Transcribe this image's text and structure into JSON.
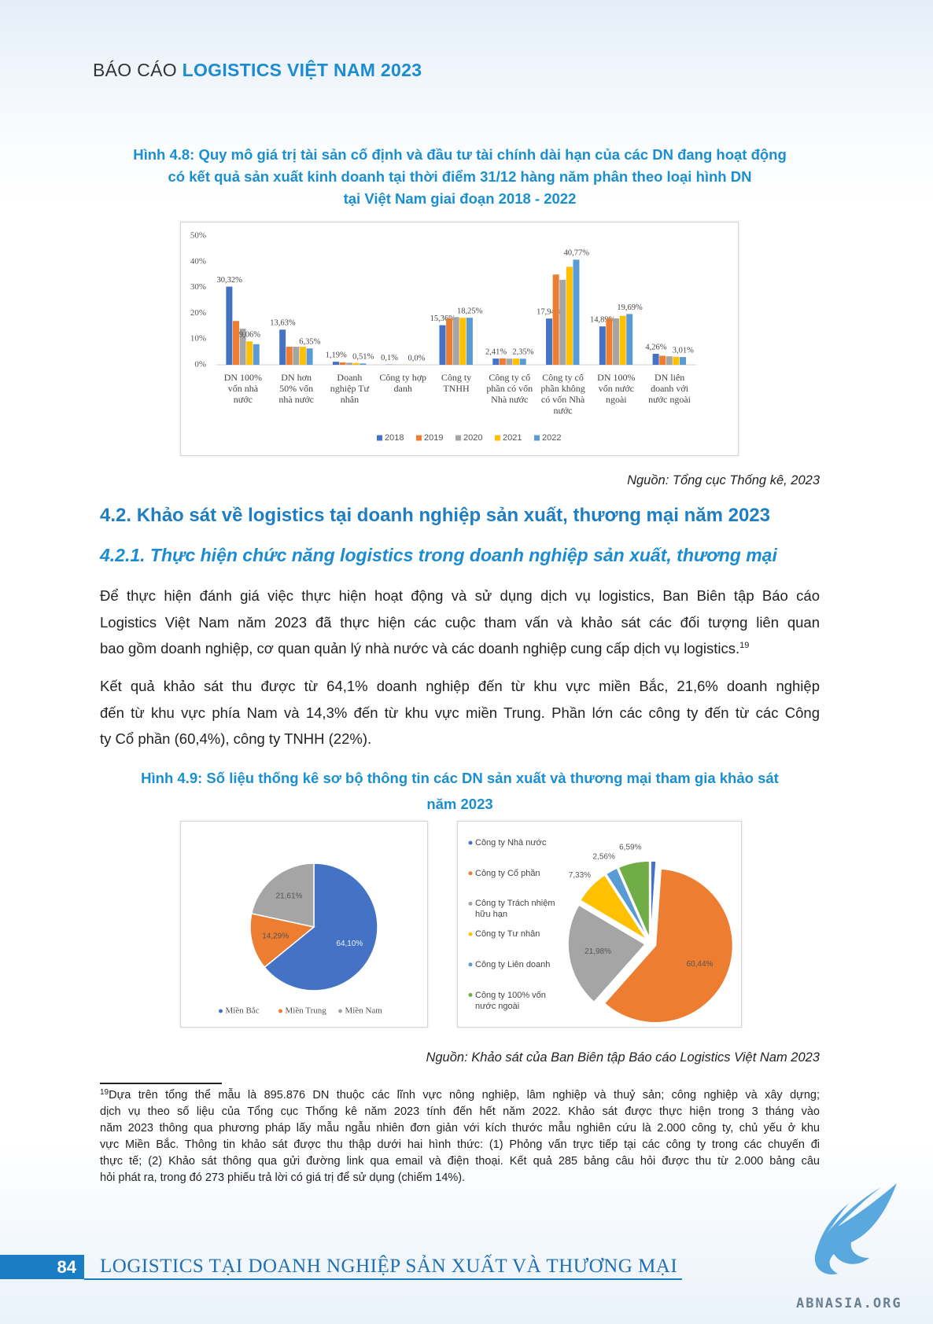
{
  "header": {
    "prefix": "BÁO CÁO",
    "title": "LOGISTICS VIỆT NAM 2023"
  },
  "figure_4_8": {
    "caption": [
      "Hình 4.8: Quy mô giá trị tài sản cố định và đầu tư tài chính dài hạn của các DN đang hoạt động",
      "có kết quả sản xuất kinh doanh tại thời điểm 31/12 hàng năm phân theo loại hình DN",
      "tại Việt Nam giai đoạn 2018 - 2022"
    ],
    "source": "Nguồn: Tổng cục Thống kê, 2023"
  },
  "section": {
    "heading": "4.2. Khảo sát về logistics tại doanh nghiệp sản xuất, thương mại năm 2023",
    "subheading": "4.2.1. Thực hiện chức năng logistics trong doanh nghiệp sản xuất, thương mại",
    "paragraphs": [
      {
        "lines": [
          "Để thực hiện đánh giá việc thực hiện hoạt động và sử dụng dịch vụ logistics, Ban Biên tập Báo cáo",
          "Logistics Việt Nam năm 2023 đã thực hiện các cuộc tham vấn và khảo sát các đối tượng liên quan",
          "bao gồm doanh nghiệp, cơ quan quản lý nhà nước và các doanh nghiệp cung cấp dịch vụ logistics."
        ],
        "note": "19"
      },
      {
        "lines": [
          "Kết quả khảo sát thu được từ 64,1% doanh nghiệp đến từ khu vực miền Bắc, 21,6% doanh nghiệp",
          "đến từ khu vực phía Nam và 14,3% đến từ khu vực miền Trung. Phần lớn các công ty đến từ các Công",
          "ty Cổ phần (60,4%), công ty TNHH (22%)."
        ]
      }
    ]
  },
  "figure_4_9": {
    "caption": [
      "Hình 4.9: Số liệu thống kê sơ bộ thông tin các DN sản xuất và thương mại tham gia khảo sát",
      "năm 2023"
    ],
    "source": "Nguồn: Khảo sát của Ban Biên tập Báo cáo Logistics Việt Nam 2023"
  },
  "footnote": {
    "marker": "19",
    "lines": [
      "Dựa trên tổng thể mẫu là 895.876 DN thuộc các lĩnh vực nông nghiệp, lâm nghiệp và thuỷ sản; công nghiệp và xây dựng;",
      "dịch vụ theo số liệu của Tổng cục Thống kê năm 2023 tính đến hết năm 2022. Khảo sát được thực hiện trong 3 tháng vào",
      "năm 2023 thông qua phương pháp lấy mẫu ngẫu nhiên đơn giản với kích thước mẫu nghiên cứu là 2.000 công ty, chủ yếu ở khu",
      "vực Miền Bắc. Thông tin khảo sát được thu thập dưới hai hình thức: (1) Phỏng vấn trực tiếp tại các công ty trong các chuyến đi",
      "thực tế; (2) Khảo sát thông qua gửi đường link qua email và điện thoại. Kết quả 285 bảng câu hỏi được thu từ 2.000 bảng câu",
      "hỏi phát ra, trong đó 273 phiếu trả lời có giá trị để sử dụng (chiếm 14%)."
    ]
  },
  "footer": {
    "page": "84",
    "title": "LOGISTICS TẠI DOANH NGHIỆP SẢN XUẤT VÀ THƯƠNG MẠI",
    "watermark": "ABNASIA.ORG"
  },
  "chart_data": [
    {
      "type": "bar",
      "categories": [
        "DN 100% vốn nhà nước",
        "DN hơn 50% vốn nhà nước",
        "Doanh nghiệp Tư nhân",
        "Công ty hợp danh",
        "Công ty TNHH",
        "Công ty cổ phần có vốn Nhà nước",
        "Công ty cổ phần không có vốn Nhà nước",
        "DN 100% vốn nước ngoài",
        "DN liên doanh với nước ngoài"
      ],
      "series": [
        {
          "name": "2018",
          "color": "#4472c4",
          "values": [
            30.32,
            13.63,
            1.19,
            0.1,
            15.36,
            2.41,
            17.94,
            14.89,
            4.26
          ],
          "value_labels": [
            "30,32%",
            "13,63%",
            "1,19%",
            "0,1%",
            "15,36%",
            "2,41%",
            "17,94%",
            "14,89%",
            "4,26%"
          ]
        },
        {
          "name": "2019",
          "color": "#ed7d31",
          "values": [
            17,
            7,
            0.9,
            0.05,
            18,
            2.5,
            35,
            18,
            3.5
          ],
          "value_labels": [
            null,
            null,
            null,
            null,
            null,
            null,
            null,
            null,
            null
          ]
        },
        {
          "name": "2020",
          "color": "#a5a5a5",
          "values": [
            14,
            7,
            0.8,
            0.05,
            18.5,
            2.4,
            33,
            18,
            3.3
          ],
          "value_labels": [
            null,
            null,
            null,
            null,
            null,
            null,
            null,
            null,
            null
          ]
        },
        {
          "name": "2021",
          "color": "#ffc000",
          "values": [
            9.06,
            7,
            0.7,
            0.05,
            18.2,
            2.4,
            38,
            19,
            3.1
          ],
          "value_labels": [
            "9,06%",
            null,
            null,
            null,
            null,
            null,
            null,
            null,
            null
          ]
        },
        {
          "name": "2022",
          "color": "#5b9bd5",
          "values": [
            8,
            6.35,
            0.51,
            0.0,
            18.25,
            2.35,
            40.77,
            19.69,
            3.01
          ],
          "value_labels": [
            null,
            "6,35%",
            "0,51%",
            "0,0%",
            "18,25%",
            "2,35%",
            "40,77%",
            "19,69%",
            "3,01%"
          ]
        }
      ],
      "ylim": [
        0,
        50
      ],
      "yticks": [
        {
          "value": 0,
          "label": "0%"
        },
        {
          "value": 10,
          "label": "10%"
        },
        {
          "value": 20,
          "label": "20%"
        },
        {
          "value": 30,
          "label": "30%"
        },
        {
          "value": 40,
          "label": "40%"
        },
        {
          "value": 50,
          "label": "50%"
        }
      ],
      "grid": false,
      "legend": "bottom"
    },
    {
      "type": "pie",
      "categories": [
        "Miền Bắc",
        "Miền Trung",
        "Miền Nam"
      ],
      "values": [
        64.1,
        14.29,
        21.61
      ],
      "value_labels": [
        "64,10%",
        "14,29%",
        "21,61%"
      ],
      "colors": [
        "#4472c4",
        "#ed7d31",
        "#a5a5a5"
      ],
      "legend": "bottom"
    },
    {
      "type": "pie",
      "categories": [
        "Công ty Nhà nước",
        "Công ty Cổ phần",
        "Công ty Trách nhiệm hữu hạn",
        "Công ty Tư nhân",
        "Công ty Liên doanh",
        "Công ty 100% vốn nước ngoài"
      ],
      "values": [
        1.1,
        60.44,
        21.98,
        7.33,
        2.56,
        6.59
      ],
      "value_labels": [
        null,
        "60,44%",
        "21,98%",
        "7,33%",
        "2,56%",
        "6,59%"
      ],
      "colors": [
        "#4472c4",
        "#ed7d31",
        "#a5a5a5",
        "#ffc000",
        "#5b9bd5",
        "#70ad47"
      ],
      "legend": "left",
      "exploded": true
    }
  ]
}
